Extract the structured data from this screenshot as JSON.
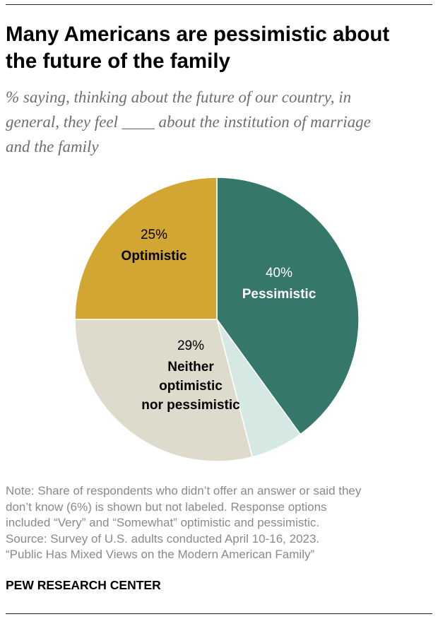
{
  "header": {
    "title_lines": [
      "Many Americans are pessimistic about",
      "the future of the family"
    ],
    "subtitle_lines": [
      "% saying, thinking about the future of our country, in",
      "general, they feel ____ about the institution of marriage",
      "and the family"
    ]
  },
  "chart_data": {
    "type": "pie",
    "start": "12 o'clock",
    "direction": "clockwise",
    "slices": [
      {
        "label": "Pessimistic",
        "value": 40,
        "value_label": "40%",
        "color": "#35776a",
        "text_color": "#ffffff",
        "labeled": true
      },
      {
        "label": "",
        "value": 6,
        "value_label": "",
        "color": "#d5e8e3",
        "text_color": "#000000",
        "labeled": false
      },
      {
        "label": "Neither optimistic nor pessimistic",
        "value": 29,
        "value_label": "29%",
        "color": "#dedbcd",
        "text_color": "#000000",
        "labeled": true
      },
      {
        "label": "Optimistic",
        "value": 25,
        "value_label": "25%",
        "color": "#d1a633",
        "text_color": "#000000",
        "labeled": true
      }
    ]
  },
  "notes": {
    "lines": [
      "Note: Share of respondents who didn’t offer an answer or said they",
      "don’t know (6%) is shown but not labeled. Response options",
      "included “Very” and “Somewhat” optimistic and pessimistic.",
      "Source: Survey of U.S. adults conducted April 10-16, 2023.",
      "“Public Has Mixed Views on the Modern American Family”"
    ]
  },
  "brand": "PEW RESEARCH CENTER"
}
